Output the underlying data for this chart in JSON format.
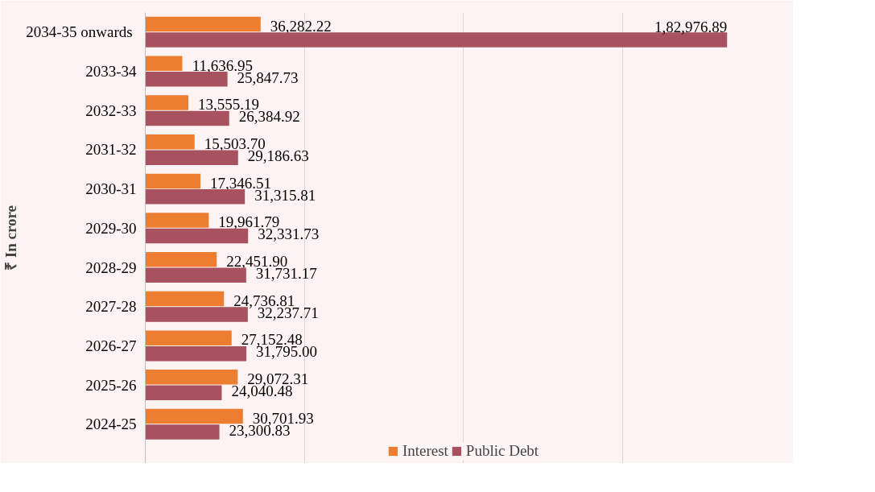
{
  "chart_data": {
    "type": "bar",
    "orientation": "horizontal",
    "ylabel": "₹ In crore",
    "categories": [
      "2034-35  onwards",
      "2033-34",
      "2032-33",
      "2031-32",
      "2030-31",
      "2029-30",
      "2028-29",
      "2027-28",
      "2026-27",
      "2025-26",
      "2024-25"
    ],
    "series": [
      {
        "name": "Interest",
        "color": "#ed7d31",
        "values": [
          36282.22,
          11636.95,
          13555.19,
          15503.7,
          17346.51,
          19961.79,
          22451.9,
          24736.81,
          27152.48,
          29072.31,
          30701.93
        ],
        "value_labels": [
          "36,282.22",
          "11,636.95",
          "13,555.19",
          "15,503.70",
          "17,346.51",
          "19,961.79",
          "22,451.90",
          "24,736.81",
          "27,152.48",
          "29,072.31",
          "30,701.93"
        ]
      },
      {
        "name": "Public Debt",
        "color": "#a9525f",
        "values": [
          182976.89,
          25847.73,
          26384.92,
          29186.63,
          31315.81,
          32331.73,
          31731.17,
          32237.71,
          31795.0,
          24040.48,
          23300.83
        ],
        "value_labels": [
          "1,82,976.89",
          "25,847.73",
          "26,384.92",
          "29,186.63",
          "31,315.81",
          "32,331.73",
          "31,731.17",
          "32,237.71",
          "31,795.00",
          "24,040.48",
          "23,300.83"
        ]
      }
    ],
    "xlim": [
      0,
      200000
    ],
    "xticks": [
      {
        "value": 0,
        "label": null
      },
      {
        "value": 50000,
        "label": null
      },
      {
        "value": 100000,
        "label": null
      },
      {
        "value": 150000,
        "label": null
      },
      {
        "value": 200000,
        "label": null
      }
    ],
    "tick_labels": "y",
    "grid": "x",
    "legend": "bottom"
  }
}
